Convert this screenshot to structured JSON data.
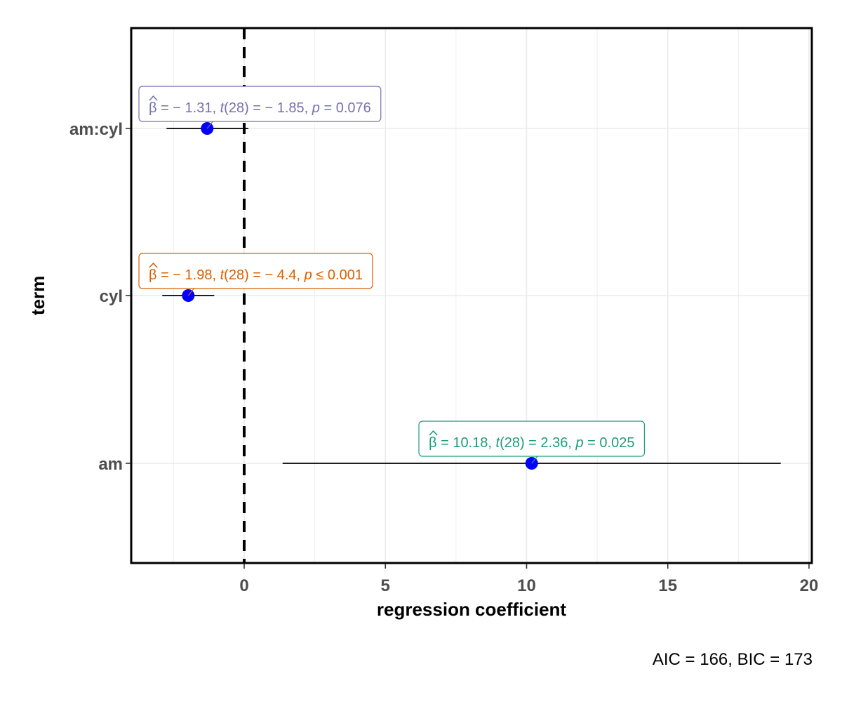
{
  "chart_data": {
    "type": "scatter",
    "subtype": "coefficient-plot",
    "xlabel": "regression coefficient",
    "ylabel": "term",
    "caption": "AIC = 166, BIC = 173",
    "xlim": [
      -4,
      20.1
    ],
    "xticks": [
      "0",
      "5",
      "10",
      "15",
      "20"
    ],
    "xtick_values": [
      0,
      5,
      10,
      15,
      20
    ],
    "reference_line_x": 0,
    "grid": true,
    "point_color": "#0000ff",
    "terms": [
      {
        "term": "am:cyl",
        "estimate": -1.31,
        "conf_low": -2.75,
        "conf_high": 0.15,
        "label_color": "#7570b3",
        "label": {
          "beta": "β",
          "estimate": " = − 1.31,  ",
          "t": "t",
          "t_stat": "(28) = − 1.85,  ",
          "p": "p",
          "p_value": " = 0.076"
        }
      },
      {
        "term": "cyl",
        "estimate": -1.98,
        "conf_low": -2.9,
        "conf_high": -1.06,
        "label_color": "#d95f02",
        "label": {
          "beta": "β",
          "estimate": " = − 1.98,  ",
          "t": "t",
          "t_stat": "(28) = − 4.4,  ",
          "p": "p",
          "p_value": " ≤ 0.001"
        }
      },
      {
        "term": "am",
        "estimate": 10.18,
        "conf_low": 1.36,
        "conf_high": 19.0,
        "label_color": "#1b9e77",
        "label": {
          "beta": "β",
          "estimate": " = 10.18,  ",
          "t": "t",
          "t_stat": "(28) = 2.36,  ",
          "p": "p",
          "p_value": " = 0.025"
        }
      }
    ]
  }
}
